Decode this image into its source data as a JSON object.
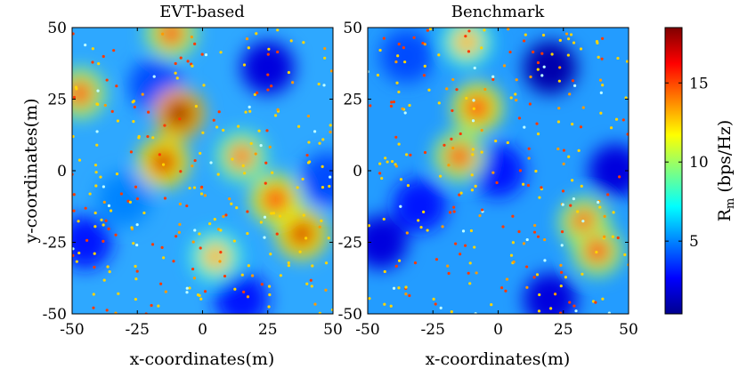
{
  "chart_data": [
    {
      "type": "heatmap",
      "title": "EVT-based",
      "xlabel": "x-coordinates(m)",
      "ylabel": "y-coordinates(m)",
      "xlim": [
        -50,
        50
      ],
      "ylim": [
        -50,
        50
      ],
      "xticks": [
        "-50",
        "-25",
        "0",
        "25",
        "50"
      ],
      "yticks": [
        "-50",
        "-25",
        "0",
        "25",
        "50"
      ],
      "hotspots": [
        {
          "x": -9,
          "y": 20,
          "value": 18
        },
        {
          "x": -15,
          "y": 3,
          "value": 17
        },
        {
          "x": 38,
          "y": -22,
          "value": 17
        },
        {
          "x": 28,
          "y": -10,
          "value": 16
        },
        {
          "x": -47,
          "y": 27,
          "value": 15
        },
        {
          "x": -12,
          "y": 48,
          "value": 15
        },
        {
          "x": 15,
          "y": 5,
          "value": 14
        },
        {
          "x": 5,
          "y": -30,
          "value": 13
        }
      ],
      "coldspots": [
        {
          "x": 25,
          "y": 36,
          "value": 2
        },
        {
          "x": -18,
          "y": 30,
          "value": 4
        },
        {
          "x": -30,
          "y": -10,
          "value": 5
        },
        {
          "x": -45,
          "y": -25,
          "value": 3
        },
        {
          "x": 15,
          "y": -45,
          "value": 3
        },
        {
          "x": 48,
          "y": -3,
          "value": 4
        }
      ]
    },
    {
      "type": "heatmap",
      "title": "Benchmark",
      "xlabel": "x-coordinates(m)",
      "ylabel": "",
      "xlim": [
        -50,
        50
      ],
      "ylim": [
        -50,
        50
      ],
      "xticks": [
        "-50",
        "-25",
        "0",
        "25",
        "50"
      ],
      "yticks": [
        "-50",
        "-25",
        "0",
        "25",
        "50"
      ],
      "hotspots": [
        {
          "x": -8,
          "y": 22,
          "value": 16
        },
        {
          "x": -15,
          "y": 5,
          "value": 15
        },
        {
          "x": 33,
          "y": -18,
          "value": 15
        },
        {
          "x": 38,
          "y": -28,
          "value": 15
        },
        {
          "x": -12,
          "y": 45,
          "value": 13
        }
      ],
      "coldspots": [
        {
          "x": 20,
          "y": 36,
          "value": 1
        },
        {
          "x": 0,
          "y": 0,
          "value": 3
        },
        {
          "x": -30,
          "y": -12,
          "value": 3
        },
        {
          "x": -45,
          "y": -25,
          "value": 2
        },
        {
          "x": 20,
          "y": -45,
          "value": 2
        },
        {
          "x": 45,
          "y": 0,
          "value": 2
        },
        {
          "x": -35,
          "y": 40,
          "value": 4
        }
      ]
    }
  ],
  "colorbar": {
    "label_main": "R",
    "label_sub": "m",
    "label_unit": " (bps/Hz)",
    "ticks": [
      5,
      10,
      15
    ],
    "range": [
      0.4,
      18.5
    ]
  }
}
